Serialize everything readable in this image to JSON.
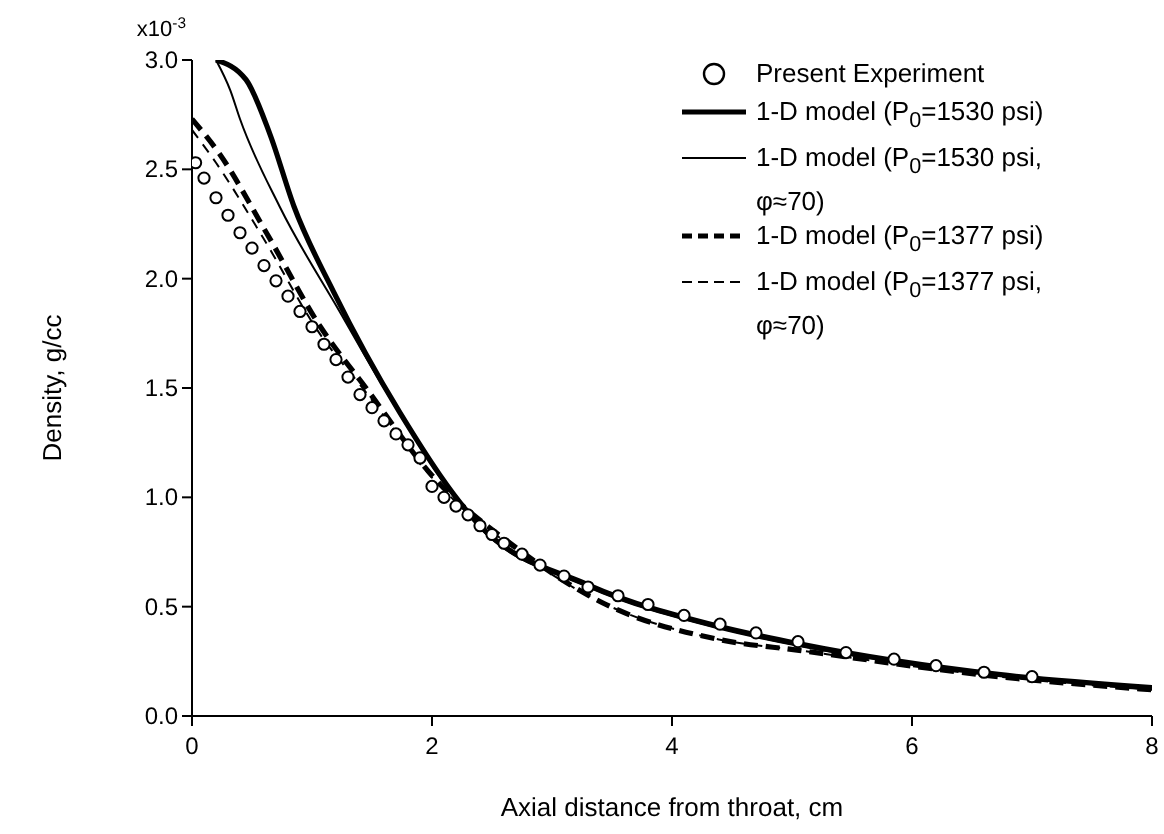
{
  "chart_data": {
    "type": "line",
    "xlabel": "Axial distance from throat, cm",
    "ylabel": "Density, g/cc",
    "annotations": [
      "x10$^{-3}$"
    ],
    "xlim": [
      0,
      8
    ],
    "xticks": [
      0,
      2,
      4,
      6,
      8
    ],
    "ylim": [
      0,
      3.0
    ],
    "yticks": [
      {
        "value": 0,
        "label": "0.0"
      },
      {
        "value": 0.5,
        "label": "0.5"
      },
      {
        "value": 1,
        "label": "1.0"
      },
      {
        "value": 1.5,
        "label": "1.5"
      },
      {
        "value": 2,
        "label": "2.0"
      },
      {
        "value": 2.5,
        "label": "2.5"
      },
      {
        "value": 3,
        "label": "3.0"
      }
    ],
    "grid": false,
    "legend": "top right",
    "series": [
      {
        "name": "Present Experiment",
        "type": "scatter",
        "marker": "circle",
        "color": "#000000",
        "x": [
          0.03,
          0.1,
          0.2,
          0.3,
          0.4,
          0.5,
          0.6,
          0.7,
          0.8,
          0.9,
          1.0,
          1.1,
          1.2,
          1.3,
          1.4,
          1.5,
          1.6,
          1.7,
          1.8,
          1.9,
          2.0,
          2.1,
          2.2,
          2.3,
          2.4,
          2.5,
          2.6,
          2.75,
          2.9,
          3.1,
          3.3,
          3.55,
          3.8,
          4.1,
          4.4,
          4.7,
          5.05,
          5.45,
          5.85,
          6.2,
          6.6,
          7.0
        ],
        "values": [
          2.53,
          2.46,
          2.37,
          2.29,
          2.21,
          2.14,
          2.06,
          1.99,
          1.92,
          1.85,
          1.78,
          1.7,
          1.63,
          1.55,
          1.47,
          1.41,
          1.35,
          1.29,
          1.24,
          1.18,
          1.05,
          1.0,
          0.96,
          0.92,
          0.87,
          0.83,
          0.79,
          0.74,
          0.69,
          0.64,
          0.59,
          0.55,
          0.51,
          0.46,
          0.42,
          0.38,
          0.34,
          0.29,
          0.26,
          0.23,
          0.2,
          0.18
        ]
      },
      {
        "name": "1-D model (P$_{0}$=1530 psi)",
        "type": "line",
        "line_style": "solid",
        "color": "#000000",
        "x": [
          0.2,
          0.45,
          0.65,
          0.85,
          1.18,
          1.73,
          2.4,
          3.3,
          4.39,
          5.06,
          6.72,
          8
        ],
        "values": [
          3.0,
          2.91,
          2.66,
          2.33,
          1.94,
          1.39,
          0.87,
          0.6,
          0.41,
          0.33,
          0.19,
          0.13
        ]
      },
      {
        "name": "1-D model (P$_{0}$=1530 psi, φ≈70)",
        "type": "line",
        "line_style": "solid",
        "color": "#000000",
        "x": [
          0.2,
          0.32,
          0.4,
          0.73,
          1.23,
          1.6,
          2.4,
          3.3,
          4.39,
          5.06,
          6.72,
          8
        ],
        "values": [
          3.0,
          2.86,
          2.73,
          2.33,
          1.85,
          1.5,
          0.86,
          0.59,
          0.4,
          0.32,
          0.19,
          0.13
        ]
      },
      {
        "name": "1-D model (P$_{0}$=1377 psi)",
        "type": "line",
        "line_style": "dashed",
        "color": "#000000",
        "x": [
          0,
          0.23,
          0.62,
          1.07,
          1.45,
          2.0,
          2.7,
          3.45,
          4.39,
          5.06,
          6.72,
          8
        ],
        "values": [
          2.73,
          2.57,
          2.21,
          1.78,
          1.5,
          1.1,
          0.77,
          0.51,
          0.35,
          0.3,
          0.18,
          0.12
        ]
      },
      {
        "name": "1-D model (P$_{0}$=1377 psi, φ≈70)",
        "type": "line",
        "line_style": "dashed",
        "color": "#000000",
        "x": [
          0,
          0.2,
          0.6,
          1.05,
          1.45,
          2.0,
          2.7,
          3.45,
          4.39,
          5.06,
          6.72,
          8
        ],
        "values": [
          2.68,
          2.53,
          2.18,
          1.76,
          1.48,
          1.09,
          0.76,
          0.51,
          0.35,
          0.3,
          0.18,
          0.12
        ]
      }
    ]
  }
}
